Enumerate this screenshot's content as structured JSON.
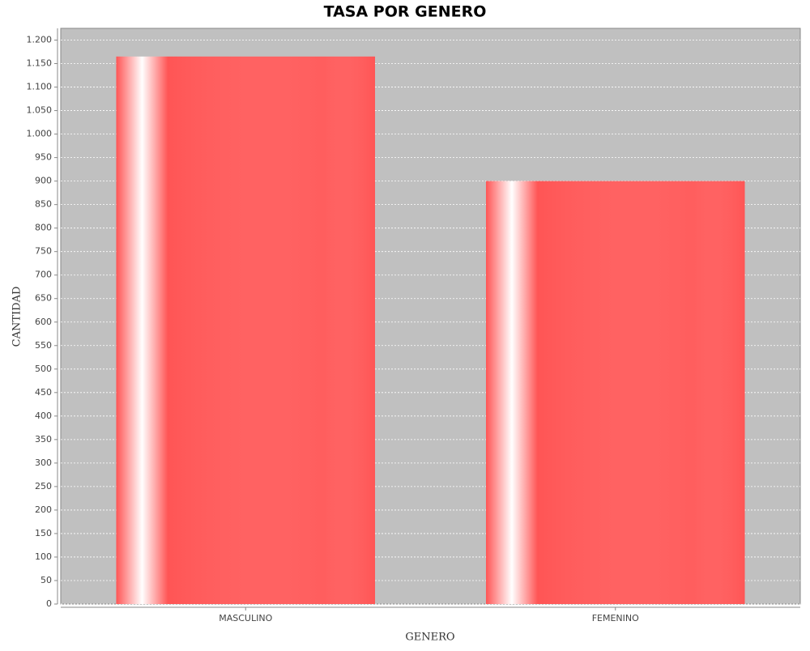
{
  "chart_data": {
    "type": "bar",
    "title": "TASA POR GENERO",
    "x_label": "GENERO",
    "y_label": "CANTIDAD",
    "categories": [
      "MASCULINO",
      "FEMENINO"
    ],
    "values": [
      1165,
      900
    ],
    "color": "#ff5555",
    "ylim": [
      0,
      1225
    ],
    "yticks": [
      0,
      50,
      100,
      150,
      200,
      250,
      300,
      350,
      400,
      450,
      500,
      550,
      600,
      650,
      700,
      750,
      800,
      850,
      900,
      950,
      {
        "value": 1000,
        "label": "1.000"
      },
      {
        "value": 1050,
        "label": "1.050"
      },
      {
        "value": 1100,
        "label": "1.100"
      },
      {
        "value": 1150,
        "label": "1.150"
      },
      {
        "value": 1200,
        "label": "1.200"
      }
    ],
    "grid": true
  }
}
